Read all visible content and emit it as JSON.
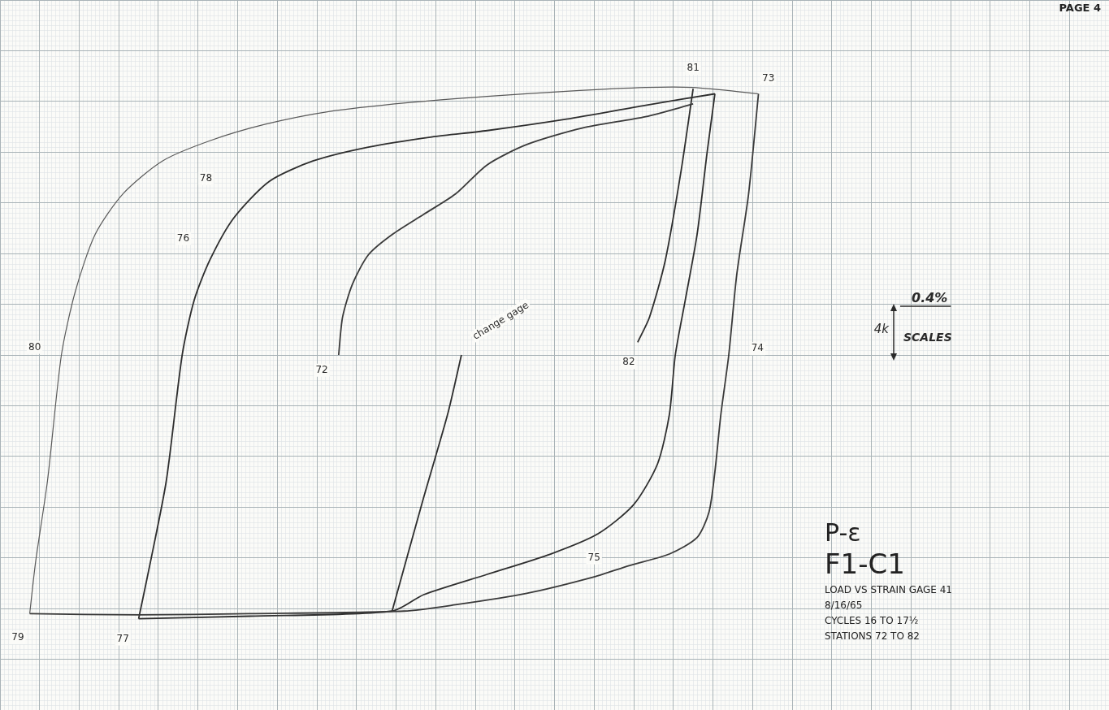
{
  "chart_data": {
    "type": "line",
    "title": "P-ε",
    "subtitle": "F1-C1",
    "notes": [
      "LOAD VS STRAIN GAGE 41",
      "8/16/65",
      "CYCLES 16 TO 17½",
      "STATIONS 72 TO 82"
    ],
    "page": "PAGE 4",
    "scale_note": {
      "load": "4k",
      "strain": "0.4%",
      "label": "SCALES"
    },
    "xlim": [
      -4.8,
      6.4
    ],
    "xticks": [
      -4.8,
      -4.4,
      -4,
      -3.6,
      -3.2,
      -2.8,
      -2.4,
      -2,
      -1.6,
      -1.2,
      -0.8,
      -0.4,
      0,
      0.4,
      0.8,
      1.2,
      1.6,
      2,
      2.4,
      2.8,
      3.2,
      3.6,
      4,
      4.4,
      4.8,
      5.2,
      5.6,
      6,
      6.4
    ],
    "ylim": [
      -28,
      28
    ],
    "yticks": [
      -28,
      -24,
      -20,
      -16,
      -12,
      -8,
      -4,
      0,
      4,
      8,
      12,
      16,
      20,
      24,
      28
    ],
    "grid": true,
    "tick_labels": false,
    "marker": "none",
    "series": [
      {
        "color": "#5a5a5a",
        "line_style": "solid",
        "x": [
          -4.5,
          -4.44,
          -4.32,
          -4.18,
          -4.04,
          -3.84,
          -3.56,
          -3.16,
          -2.68,
          -2.12,
          -1.48,
          -0.68,
          0.12,
          0.92,
          1.72,
          2.2,
          2.86
        ],
        "values": [
          -20.4,
          -16.3,
          -9.9,
          0,
          5.0,
          9.5,
          12.7,
          15.3,
          16.9,
          18.2,
          19.2,
          19.9,
          20.4,
          20.8,
          21.1,
          21.1,
          20.6
        ]
      },
      {
        "color": "#3a3a3a",
        "line_style": "solid",
        "x": [
          2.86,
          2.76,
          2.64,
          2.56,
          2.48,
          2.42,
          2.36,
          2.24,
          1.96,
          1.56,
          1.2,
          0.52,
          -0.2,
          -0.72,
          -2.28,
          -3.4,
          -4.5
        ],
        "values": [
          20.6,
          12.7,
          6.3,
          0,
          -4.7,
          -9.2,
          -12.4,
          -14.4,
          -15.7,
          -16.6,
          -17.5,
          -18.8,
          -19.7,
          -20.2,
          -20.4,
          -20.5,
          -20.4
        ]
      },
      {
        "color": "#2e2e2e",
        "line_style": "solid",
        "x": [
          -3.4,
          -3.28,
          -3.12,
          -2.96,
          -2.84,
          -2.68,
          -2.44,
          -2.08,
          -1.64,
          -1.08,
          -0.44,
          0.12,
          0.92,
          1.72,
          2.42
        ],
        "values": [
          -20.8,
          -16.3,
          -9.9,
          0,
          4.3,
          7.5,
          10.8,
          13.7,
          15.3,
          16.4,
          17.2,
          17.7,
          18.6,
          19.7,
          20.6
        ]
      },
      {
        "color": "#3a3a3a",
        "line_style": "solid",
        "x": [
          -1.38,
          -1.34,
          -1.24,
          -1.08,
          -0.84,
          -0.52,
          -0.2,
          0.12,
          0.52,
          1.08,
          1.72,
          2.2
        ],
        "values": [
          0,
          3.0,
          5.6,
          7.9,
          9.5,
          11.1,
          12.7,
          15.0,
          16.6,
          17.9,
          18.8,
          19.8
        ]
      },
      {
        "color": "#2e2e2e",
        "line_style": "solid",
        "x": [
          2.42,
          2.34,
          2.24,
          2.12,
          2.02,
          1.96,
          1.84,
          1.6,
          1.24,
          0.76,
          0.12,
          -0.52,
          -0.84,
          -2.28,
          -3.4
        ],
        "values": [
          20.6,
          15.9,
          9.5,
          4.3,
          0,
          -4.7,
          -8.6,
          -11.8,
          -14.1,
          -15.7,
          -17.3,
          -18.9,
          -20.2,
          -20.6,
          -20.8
        ]
      },
      {
        "color": "#2e2e2e",
        "line_style": "solid",
        "x": [
          -0.84,
          -0.52,
          -0.28,
          -0.14
        ],
        "values": [
          -20.2,
          -11.2,
          -4.7,
          0
        ]
      },
      {
        "color": "#2e2e2e",
        "line_style": "solid",
        "x": [
          2.2,
          2.08,
          1.92,
          1.76,
          1.64
        ],
        "values": [
          21.0,
          14.6,
          7.5,
          3.0,
          1.0
        ]
      }
    ],
    "annotations": [
      {
        "text": "72",
        "x": -1.55,
        "y": -1.2
      },
      {
        "text": "73",
        "x": 2.96,
        "y": 21.8
      },
      {
        "text": "74",
        "x": 2.85,
        "y": 0.5
      },
      {
        "text": "75",
        "x": 1.2,
        "y": -16.0
      },
      {
        "text": "76",
        "x": -2.95,
        "y": 9.2
      },
      {
        "text": "77",
        "x": -3.56,
        "y": -22.4
      },
      {
        "text": "78",
        "x": -2.72,
        "y": 13.9
      },
      {
        "text": "79",
        "x": -4.62,
        "y": -22.3
      },
      {
        "text": "80",
        "x": -4.45,
        "y": 0.6
      },
      {
        "text": "81",
        "x": 2.2,
        "y": 22.6
      },
      {
        "text": "82",
        "x": 1.55,
        "y": -0.6
      },
      {
        "text": "change gage",
        "x": 0.0,
        "y": 1.2
      }
    ]
  }
}
